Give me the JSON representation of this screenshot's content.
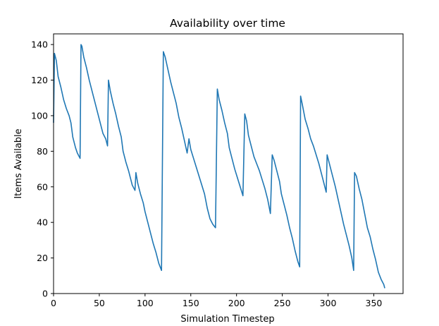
{
  "chart_data": {
    "type": "line",
    "title": "Availability over time",
    "xlabel": "Simulation Timestep",
    "ylabel": "Items Available",
    "xlim": [
      0,
      382
    ],
    "ylim": [
      0,
      146
    ],
    "xticks": [
      0,
      50,
      100,
      150,
      200,
      250,
      300,
      350
    ],
    "yticks": [
      0,
      20,
      40,
      60,
      80,
      100,
      120,
      140
    ],
    "grid": false,
    "legend": "none",
    "series": [
      {
        "color": "#1f77b4",
        "points": [
          [
            0,
            96
          ],
          [
            1,
            135
          ],
          [
            3,
            131
          ],
          [
            5,
            122
          ],
          [
            8,
            116
          ],
          [
            11,
            109
          ],
          [
            14,
            104
          ],
          [
            17,
            100
          ],
          [
            19,
            96
          ],
          [
            21,
            88
          ],
          [
            24,
            82
          ],
          [
            26,
            79
          ],
          [
            29,
            76
          ],
          [
            30,
            140
          ],
          [
            31,
            139
          ],
          [
            33,
            133
          ],
          [
            36,
            127
          ],
          [
            39,
            120
          ],
          [
            42,
            114
          ],
          [
            45,
            108
          ],
          [
            48,
            102
          ],
          [
            51,
            96
          ],
          [
            54,
            90
          ],
          [
            57,
            87
          ],
          [
            59,
            83
          ],
          [
            60,
            120
          ],
          [
            62,
            114
          ],
          [
            65,
            107
          ],
          [
            68,
            101
          ],
          [
            71,
            94
          ],
          [
            74,
            88
          ],
          [
            76,
            80
          ],
          [
            79,
            74
          ],
          [
            82,
            69
          ],
          [
            84,
            65
          ],
          [
            86,
            61
          ],
          [
            89,
            58
          ],
          [
            90,
            68
          ],
          [
            92,
            62
          ],
          [
            95,
            56
          ],
          [
            98,
            51
          ],
          [
            100,
            46
          ],
          [
            103,
            40
          ],
          [
            106,
            34
          ],
          [
            109,
            28
          ],
          [
            112,
            23
          ],
          [
            115,
            17
          ],
          [
            118,
            13
          ],
          [
            120,
            136
          ],
          [
            122,
            133
          ],
          [
            125,
            126
          ],
          [
            128,
            119
          ],
          [
            131,
            113
          ],
          [
            134,
            107
          ],
          [
            137,
            99
          ],
          [
            140,
            93
          ],
          [
            143,
            86
          ],
          [
            146,
            79
          ],
          [
            148,
            87
          ],
          [
            150,
            81
          ],
          [
            153,
            76
          ],
          [
            156,
            71
          ],
          [
            159,
            66
          ],
          [
            162,
            61
          ],
          [
            165,
            56
          ],
          [
            168,
            48
          ],
          [
            171,
            42
          ],
          [
            174,
            39
          ],
          [
            177,
            37
          ],
          [
            179,
            115
          ],
          [
            181,
            109
          ],
          [
            184,
            103
          ],
          [
            187,
            96
          ],
          [
            190,
            90
          ],
          [
            192,
            82
          ],
          [
            195,
            76
          ],
          [
            198,
            70
          ],
          [
            201,
            65
          ],
          [
            204,
            60
          ],
          [
            207,
            55
          ],
          [
            209,
            101
          ],
          [
            211,
            97
          ],
          [
            213,
            89
          ],
          [
            216,
            83
          ],
          [
            219,
            77
          ],
          [
            222,
            73
          ],
          [
            225,
            69
          ],
          [
            228,
            64
          ],
          [
            231,
            59
          ],
          [
            234,
            53
          ],
          [
            237,
            45
          ],
          [
            239,
            78
          ],
          [
            241,
            75
          ],
          [
            244,
            69
          ],
          [
            247,
            63
          ],
          [
            249,
            56
          ],
          [
            252,
            50
          ],
          [
            255,
            44
          ],
          [
            258,
            37
          ],
          [
            261,
            31
          ],
          [
            264,
            24
          ],
          [
            267,
            18
          ],
          [
            269,
            15
          ],
          [
            270,
            111
          ],
          [
            272,
            106
          ],
          [
            275,
            98
          ],
          [
            278,
            93
          ],
          [
            281,
            87
          ],
          [
            284,
            83
          ],
          [
            287,
            78
          ],
          [
            290,
            73
          ],
          [
            293,
            67
          ],
          [
            296,
            61
          ],
          [
            298,
            57
          ],
          [
            299,
            78
          ],
          [
            302,
            72
          ],
          [
            305,
            66
          ],
          [
            308,
            60
          ],
          [
            311,
            53
          ],
          [
            314,
            46
          ],
          [
            317,
            39
          ],
          [
            320,
            33
          ],
          [
            323,
            27
          ],
          [
            326,
            20
          ],
          [
            328,
            13
          ],
          [
            329,
            68
          ],
          [
            331,
            66
          ],
          [
            334,
            59
          ],
          [
            337,
            53
          ],
          [
            340,
            45
          ],
          [
            343,
            37
          ],
          [
            346,
            32
          ],
          [
            349,
            25
          ],
          [
            352,
            19
          ],
          [
            355,
            12
          ],
          [
            358,
            8
          ],
          [
            361,
            5
          ],
          [
            362,
            3
          ]
        ]
      }
    ]
  }
}
